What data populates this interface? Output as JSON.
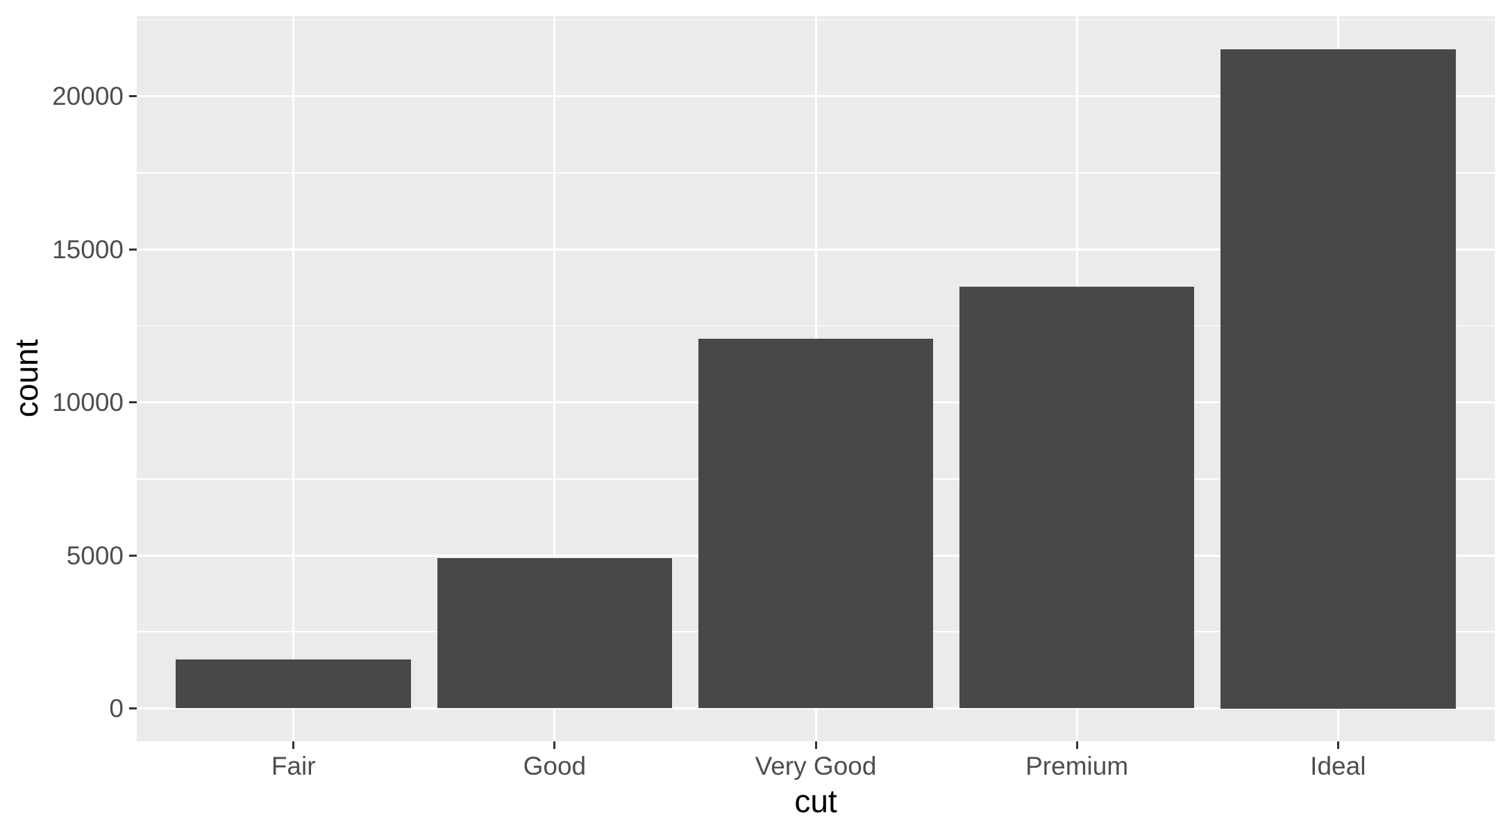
{
  "chart_data": {
    "type": "bar",
    "title": "",
    "xlabel": "cut",
    "ylabel": "count",
    "categories": [
      "Fair",
      "Good",
      "Very Good",
      "Premium",
      "Ideal"
    ],
    "values": [
      1610,
      4906,
      12082,
      13791,
      21551
    ],
    "y_ticks": [
      0,
      5000,
      10000,
      15000,
      20000
    ],
    "y_minor_gridlines": [
      2500,
      7500,
      12500,
      17500,
      22500
    ],
    "ylim": [
      0,
      21551
    ],
    "y_expansion": 0.05,
    "grid": "on",
    "legend": "none",
    "colors": {
      "bar_fill": "#484848",
      "panel_background": "#EBEBEB",
      "gridline": "#FFFFFF",
      "tick_mark": "#333333",
      "tick_label_text": "#4D4D4D",
      "axis_title_text": "#000000",
      "plot_background": "#FFFFFF"
    }
  }
}
